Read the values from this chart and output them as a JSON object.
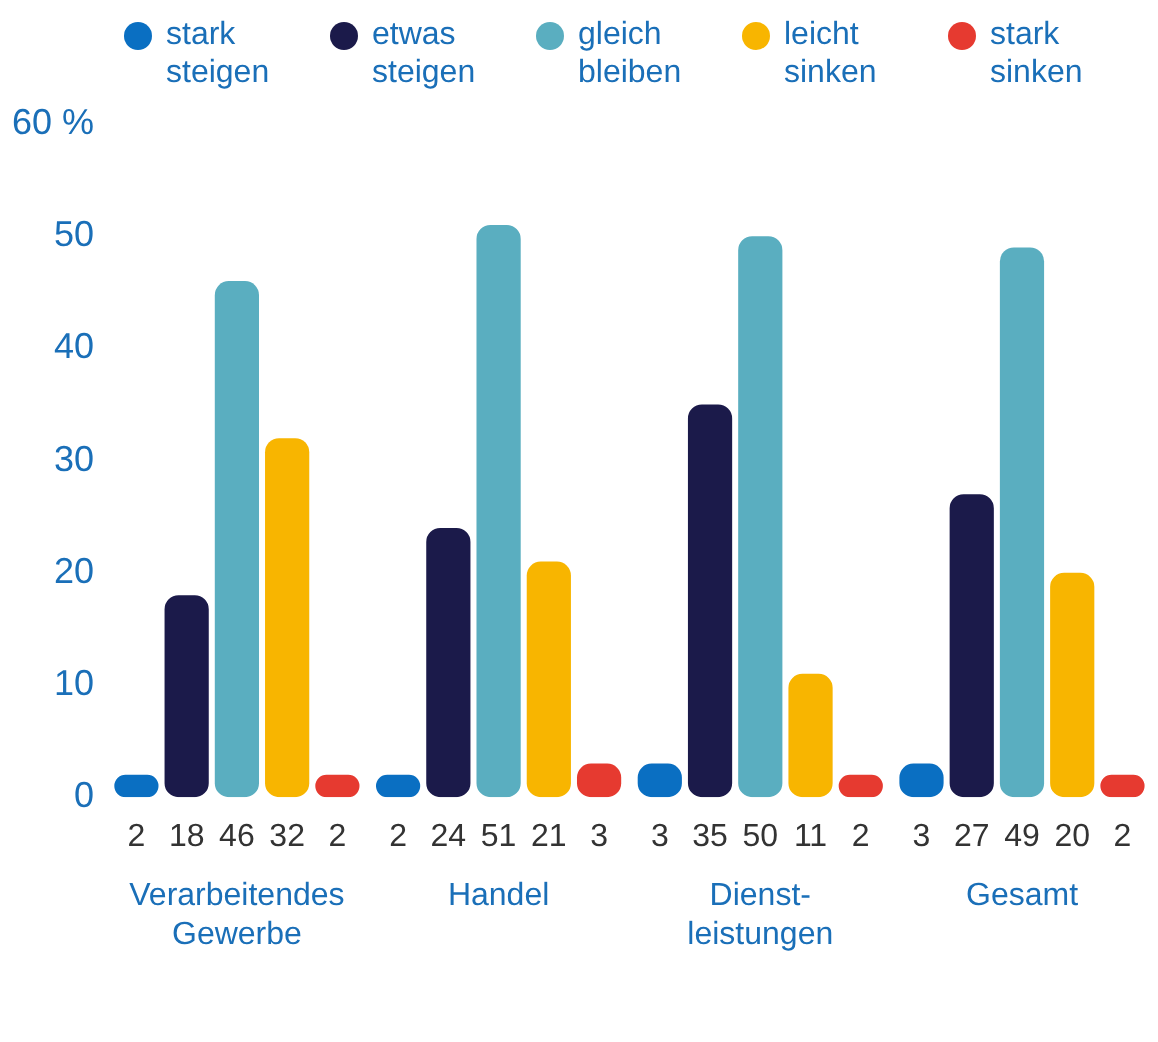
{
  "chart_data": {
    "type": "bar",
    "categories": [
      "Verarbeitendes Gewerbe",
      "Handel",
      "Dienst-\nleistungen",
      "Gesamt"
    ],
    "series": [
      {
        "name": "stark steigen",
        "color": "#0a6fc2",
        "values": [
          2,
          2,
          3,
          3
        ]
      },
      {
        "name": "etwas steigen",
        "color": "#1b1a4a",
        "values": [
          18,
          24,
          35,
          27
        ]
      },
      {
        "name": "gleich bleiben",
        "color": "#5aaec0",
        "values": [
          46,
          51,
          50,
          49
        ]
      },
      {
        "name": "leicht sinken",
        "color": "#f8b500",
        "values": [
          32,
          21,
          11,
          20
        ]
      },
      {
        "name": "stark sinken",
        "color": "#e63a30",
        "values": [
          2,
          3,
          2,
          2
        ]
      }
    ],
    "ylim": [
      0,
      60
    ],
    "yticks": [
      0,
      10,
      20,
      30,
      40,
      50,
      {
        "value": 60,
        "label": "60 %"
      }
    ],
    "grid": false,
    "legend": "top",
    "data_labels": true
  }
}
